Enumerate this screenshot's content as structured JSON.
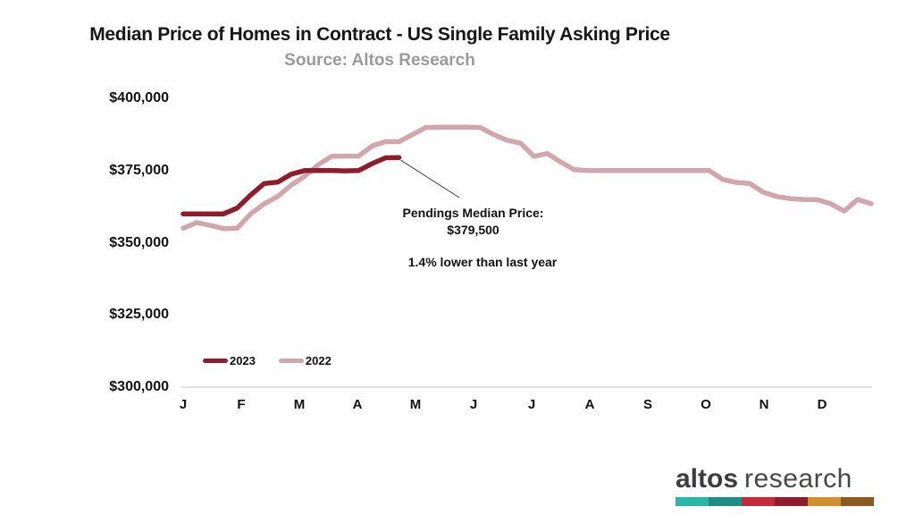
{
  "title": "Median Price of Homes in Contract - US Single Family Asking Price",
  "subtitle": "Source: Altos Research",
  "annotation": {
    "line1": "Pendings Median Price:",
    "line2": "$379,500",
    "line3": "1.4% lower than last year"
  },
  "legend": [
    {
      "label": "2023",
      "color": "#8e1c2b"
    },
    {
      "label": "2022",
      "color": "#d2a6ad"
    }
  ],
  "colors": {
    "series_2023": "#8e1c2b",
    "series_2022": "#d2a6ad",
    "axis_line": "#d6d6d6",
    "leader_line": "#3c3c3c",
    "subtitle_gray": "#9a9a9a",
    "text_black": "#111111",
    "logo_text": "#3c3c3c"
  },
  "chart_data": {
    "type": "line",
    "title": "Median Price of Homes in Contract - US Single Family Asking Price",
    "subtitle": "Source: Altos Research",
    "x_unit": "week of year (weekly data, Jan-Dec)",
    "x_tick_labels": [
      "J",
      "F",
      "M",
      "A",
      "M",
      "J",
      "J",
      "A",
      "S",
      "O",
      "N",
      "D"
    ],
    "ylim": [
      300000,
      400000
    ],
    "ytick_values": [
      400000,
      375000,
      350000,
      325000,
      300000
    ],
    "ytick_labels": [
      "$400,000",
      "$375,000",
      "$350,000",
      "$325,000",
      "$300,000"
    ],
    "grid": "off",
    "legend_position": "lower-left",
    "annotation_target_value": 379500,
    "series": [
      {
        "name": "2023",
        "color": "#8e1c2b",
        "start_week": 1,
        "values": [
          360000,
          360000,
          360000,
          360000,
          362000,
          366500,
          370500,
          371000,
          373700,
          375000,
          375000,
          375000,
          374900,
          375000,
          377400,
          379400,
          379500
        ]
      },
      {
        "name": "2022",
        "color": "#d2a6ad",
        "start_week": 1,
        "values": [
          355000,
          357000,
          356000,
          354900,
          355000,
          360000,
          363500,
          366000,
          369900,
          373000,
          377000,
          379900,
          380000,
          380000,
          383500,
          385000,
          385000,
          387500,
          389900,
          390000,
          390000,
          390000,
          389900,
          387500,
          385500,
          384500,
          379900,
          380900,
          377900,
          375300,
          375000,
          375000,
          375000,
          375000,
          375000,
          375000,
          375000,
          375000,
          375000,
          375000,
          371900,
          370900,
          370500,
          367500,
          366000,
          365300,
          365000,
          364900,
          363500,
          361000,
          365000,
          363500
        ]
      }
    ]
  },
  "logo": {
    "brand_bold": "altos",
    "brand_light": "research",
    "bar_colors": [
      "#2bb4a8",
      "#1f8c85",
      "#c52a3c",
      "#8e1e2b",
      "#d0902f",
      "#8b5a20"
    ]
  }
}
